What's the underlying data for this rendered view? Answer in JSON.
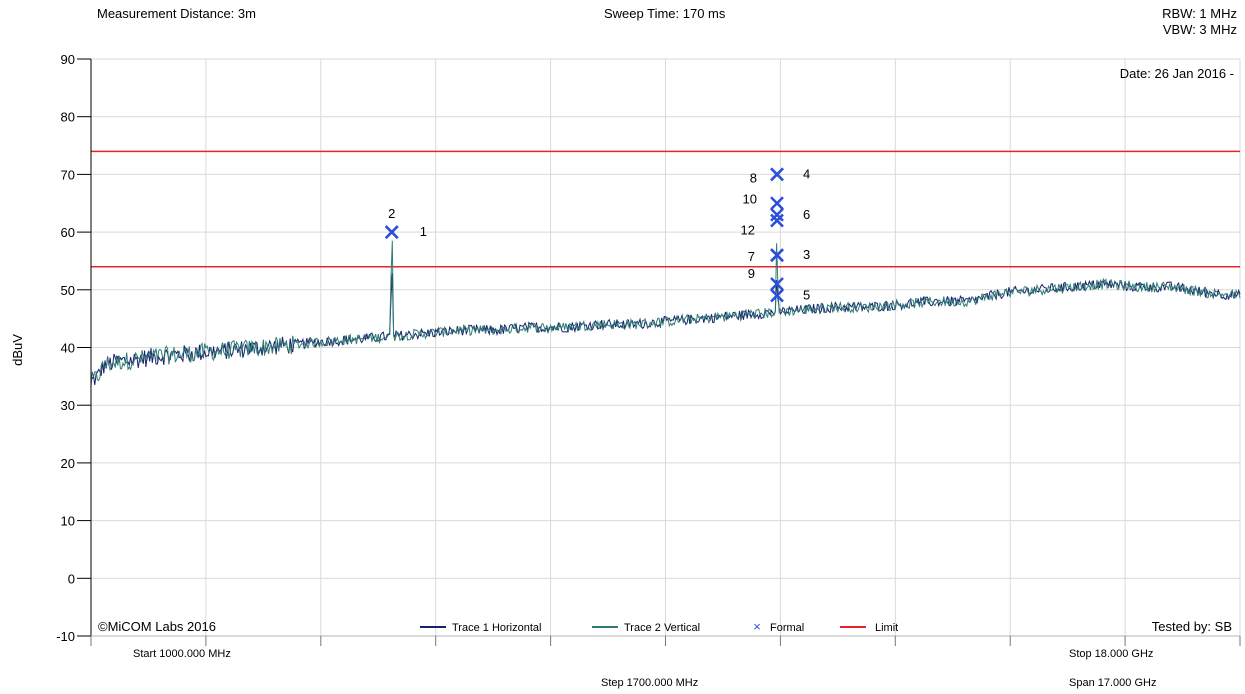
{
  "header": {
    "measurement": "Measurement Distance: 3m",
    "sweep": "Sweep Time: 170 ms",
    "rbw": "RBW: 1 MHz",
    "vbw": "VBW: 3 MHz",
    "date": "Date: 26 Jan 2016 -"
  },
  "footer": {
    "copyright": "©MiCOM Labs 2016",
    "tested_by": "Tested by: SB",
    "start": "Start 1000.000 MHz",
    "step": "Step 1700.000 MHz",
    "stop": "Stop 18.000 GHz",
    "span": "Span 17.000 GHz"
  },
  "colors": {
    "trace1": "#1a1f6e",
    "trace2": "#2e7d74",
    "formal": "#2b4fd8",
    "limit": "#e8242b",
    "grid": "#d9d9d9"
  },
  "chart_data": {
    "type": "line",
    "title": "",
    "xlabel": "",
    "ylabel": "dBuV",
    "xlim": [
      1000,
      18000
    ],
    "x_unit": "MHz",
    "ylim": [
      -10,
      90
    ],
    "yticks": [
      -10,
      0,
      10,
      20,
      30,
      40,
      50,
      60,
      70,
      80,
      90
    ],
    "grid": true,
    "legend": [
      {
        "name": "Trace 1 Horizontal",
        "kind": "line",
        "color": "#1a1f6e"
      },
      {
        "name": "Trace 2 Vertical",
        "kind": "line",
        "color": "#2e7d74"
      },
      {
        "name": "Formal",
        "kind": "marker",
        "color": "#2b4fd8"
      },
      {
        "name": "Limit",
        "kind": "line",
        "color": "#e8242b"
      }
    ],
    "limits": [
      74,
      54
    ],
    "trace_envelope": {
      "x": [
        1000,
        1100,
        1200,
        1400,
        1700,
        2000,
        2500,
        3000,
        3500,
        4000,
        4400,
        5000,
        5500,
        6000,
        6500,
        7000,
        7500,
        8000,
        8500,
        9000,
        9500,
        10000,
        10500,
        11000,
        11500,
        12000,
        12500,
        13000,
        13500,
        14000,
        14500,
        15000,
        15500,
        16000,
        16500,
        17000,
        17500,
        18000
      ],
      "y": [
        34,
        35,
        37,
        37.5,
        38,
        38.5,
        39,
        39.5,
        40,
        40.5,
        41,
        41.5,
        42,
        42.5,
        43,
        43,
        43.5,
        43.5,
        44,
        44,
        44.5,
        45,
        45.5,
        46,
        46.5,
        47,
        47,
        47.5,
        48,
        48,
        49.5,
        50,
        50.5,
        51,
        50.5,
        50.5,
        49.5,
        49
      ]
    },
    "peaks": [
      {
        "x": 5450,
        "y": 68.5
      },
      {
        "x": 11150,
        "y": 63
      }
    ],
    "markers": [
      {
        "label": "1",
        "x": 5450,
        "y": 60
      },
      {
        "label": "2",
        "x": 5450,
        "y": 60
      },
      {
        "label": "3",
        "x": 11150,
        "y": 56
      },
      {
        "label": "4",
        "x": 11150,
        "y": 70
      },
      {
        "label": "5",
        "x": 11150,
        "y": 49
      },
      {
        "label": "6",
        "x": 11150,
        "y": 63
      },
      {
        "label": "7",
        "x": 11150,
        "y": 56
      },
      {
        "label": "8",
        "x": 11150,
        "y": 70
      },
      {
        "label": "9",
        "x": 11150,
        "y": 51
      },
      {
        "label": "10",
        "x": 11150,
        "y": 65
      },
      {
        "label": "12",
        "x": 11150,
        "y": 62
      }
    ]
  }
}
